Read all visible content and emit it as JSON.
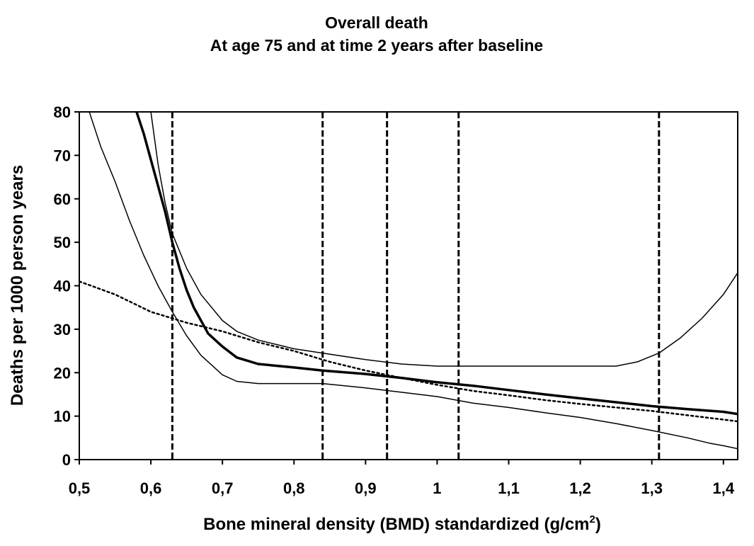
{
  "chart_data": {
    "type": "line",
    "title": "Overall death",
    "subtitle": "At age 75 and at time 2 years after baseline",
    "xlabel_main": "Bone mineral density (BMD) standardized (g/cm",
    "xlabel_sup": "2",
    "xlabel_tail": ")",
    "ylabel": "Deaths per 1000 person years",
    "xlim": [
      0.5,
      1.42
    ],
    "ylim": [
      0,
      80
    ],
    "x_ticks": [
      0.5,
      0.6,
      0.7,
      0.8,
      0.9,
      1.0,
      1.1,
      1.2,
      1.3,
      1.4
    ],
    "x_tick_labels": [
      "0,5",
      "0,6",
      "0,7",
      "0,8",
      "0,9",
      "1",
      "1,1",
      "1,2",
      "1,3",
      "1,4"
    ],
    "y_ticks": [
      0,
      10,
      20,
      30,
      40,
      50,
      60,
      70,
      80
    ],
    "y_tick_labels": [
      "0",
      "10",
      "20",
      "30",
      "40",
      "50",
      "60",
      "70",
      "80"
    ],
    "grid": false,
    "legend": "none",
    "vertical_lines_x": [
      0.63,
      0.84,
      0.93,
      1.03,
      1.31
    ],
    "series": [
      {
        "style": "bold-solid",
        "x": [
          0.58,
          0.59,
          0.6,
          0.61,
          0.62,
          0.63,
          0.64,
          0.65,
          0.66,
          0.68,
          0.7,
          0.72,
          0.75,
          0.8,
          0.84,
          0.9,
          0.95,
          1.0,
          1.05,
          1.1,
          1.15,
          1.2,
          1.25,
          1.3,
          1.35,
          1.4,
          1.42
        ],
        "y": [
          80,
          75,
          69,
          63,
          57,
          50,
          44,
          39,
          35,
          29,
          26,
          23.5,
          22,
          21.2,
          20.5,
          19.7,
          18.8,
          17.8,
          17,
          16,
          15,
          14.1,
          13.2,
          12.3,
          11.6,
          11,
          10.5
        ]
      },
      {
        "style": "thin-solid-upper",
        "x": [
          0.6,
          0.61,
          0.62,
          0.63,
          0.65,
          0.67,
          0.7,
          0.72,
          0.75,
          0.8,
          0.84,
          0.9,
          0.95,
          1.0,
          1.05,
          1.1,
          1.15,
          1.2,
          1.25,
          1.28,
          1.31,
          1.34,
          1.37,
          1.4,
          1.42
        ],
        "y": [
          80,
          68,
          59,
          52,
          44,
          38,
          32,
          29.5,
          27.5,
          25.5,
          24.5,
          23,
          22,
          21.5,
          21.5,
          21.5,
          21.5,
          21.5,
          21.5,
          22.5,
          24.5,
          28,
          32.5,
          38,
          43
        ]
      },
      {
        "style": "thin-solid-lower",
        "x": [
          0.51,
          0.53,
          0.55,
          0.57,
          0.59,
          0.61,
          0.63,
          0.65,
          0.67,
          0.7,
          0.72,
          0.75,
          0.8,
          0.84,
          0.9,
          0.95,
          1.0,
          1.05,
          1.1,
          1.15,
          1.2,
          1.25,
          1.3,
          1.35,
          1.38,
          1.4,
          1.42
        ],
        "y": [
          82,
          72,
          64,
          55,
          47,
          40,
          34,
          28.5,
          24,
          19.5,
          18,
          17.5,
          17.5,
          17.5,
          16.5,
          15.5,
          14.5,
          13,
          12,
          10.8,
          9.7,
          8.3,
          6.7,
          5,
          3.8,
          3.2,
          2.5
        ]
      },
      {
        "style": "dotted",
        "x": [
          0.5,
          0.55,
          0.6,
          0.65,
          0.7,
          0.75,
          0.8,
          0.85,
          0.9,
          0.95,
          1.0,
          1.05,
          1.1,
          1.15,
          1.2,
          1.25,
          1.3,
          1.35,
          1.4,
          1.42
        ],
        "y": [
          41,
          38,
          34,
          31.5,
          29.5,
          27,
          25,
          22.5,
          20.5,
          18.8,
          17.2,
          15.8,
          14.8,
          13.7,
          12.8,
          12,
          11.2,
          10.2,
          9.2,
          8.8
        ]
      }
    ]
  }
}
